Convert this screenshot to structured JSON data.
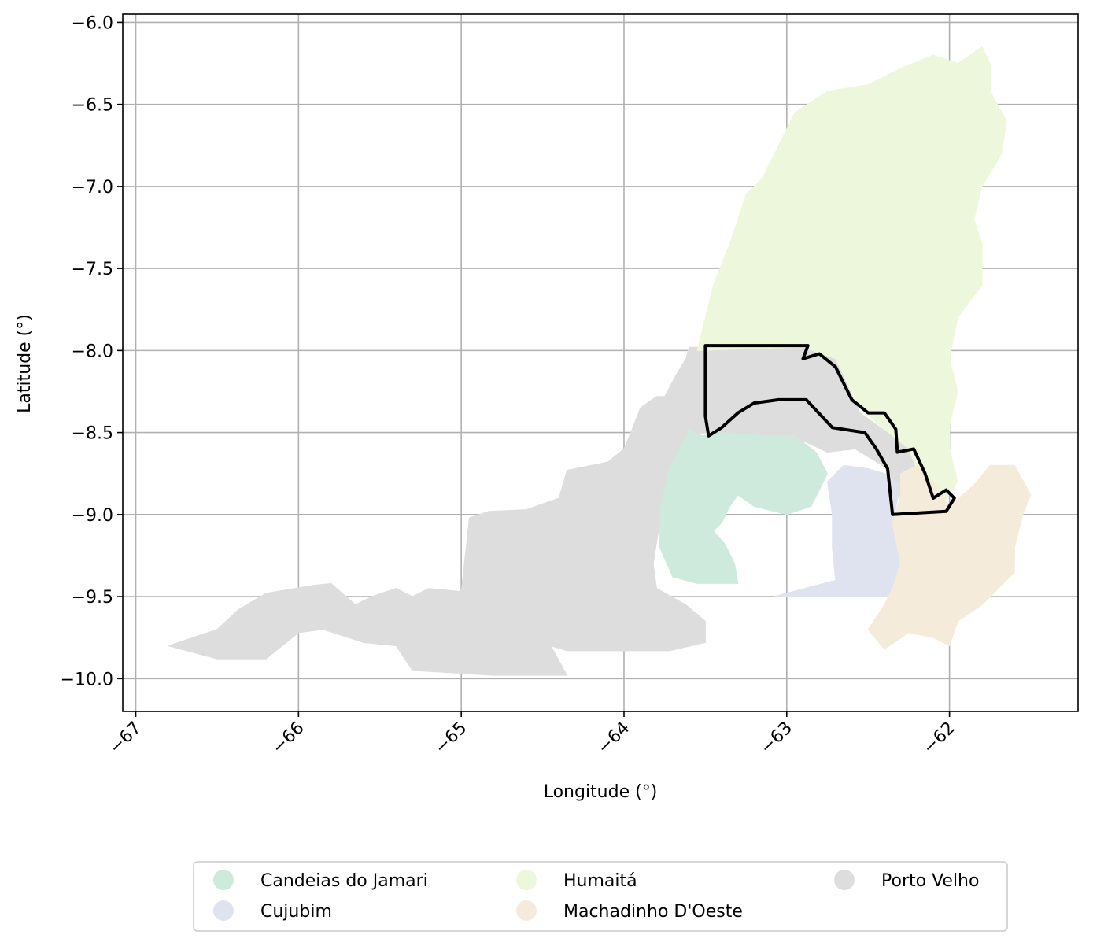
{
  "chart_data": {
    "type": "choropleth-map",
    "xlabel": "Longitude (°)",
    "ylabel": "Latitude (°)",
    "xlim": [
      -67.08,
      -61.21
    ],
    "ylim": [
      -10.2,
      -5.95
    ],
    "xticks": [
      -67,
      -66,
      -65,
      -64,
      -63,
      -62
    ],
    "xtick_labels": [
      "−67",
      "−66",
      "−65",
      "−64",
      "−63",
      "−62"
    ],
    "yticks": [
      -6.0,
      -6.5,
      -7.0,
      -7.5,
      -8.0,
      -8.5,
      -9.0,
      -9.5,
      -10.0
    ],
    "ytick_labels": [
      "−6.0",
      "−6.5",
      "−7.0",
      "−7.5",
      "−8.0",
      "−8.5",
      "−9.0",
      "−9.5",
      "−10.0"
    ],
    "grid": true,
    "legend_position": "bottom-center",
    "regions": [
      {
        "name": "Porto Velho",
        "color": "#dddddd",
        "coords": [
          [
            -66.8,
            -9.8
          ],
          [
            -66.5,
            -9.7
          ],
          [
            -66.37,
            -9.58
          ],
          [
            -66.2,
            -9.48
          ],
          [
            -65.9,
            -9.43
          ],
          [
            -65.8,
            -9.42
          ],
          [
            -65.65,
            -9.55
          ],
          [
            -65.55,
            -9.5
          ],
          [
            -65.4,
            -9.45
          ],
          [
            -65.3,
            -9.5
          ],
          [
            -65.2,
            -9.45
          ],
          [
            -65.0,
            -9.47
          ],
          [
            -64.95,
            -9.02
          ],
          [
            -64.83,
            -8.98
          ],
          [
            -64.6,
            -8.97
          ],
          [
            -64.4,
            -8.9
          ],
          [
            -64.35,
            -8.73
          ],
          [
            -64.2,
            -8.7
          ],
          [
            -64.1,
            -8.68
          ],
          [
            -64.0,
            -8.6
          ],
          [
            -63.95,
            -8.48
          ],
          [
            -63.9,
            -8.35
          ],
          [
            -63.8,
            -8.28
          ],
          [
            -63.75,
            -8.28
          ],
          [
            -63.68,
            -8.15
          ],
          [
            -63.62,
            -8.05
          ],
          [
            -63.6,
            -7.98
          ],
          [
            -63.3,
            -7.98
          ],
          [
            -62.9,
            -7.98
          ],
          [
            -62.7,
            -8.05
          ],
          [
            -62.55,
            -8.38
          ],
          [
            -62.38,
            -8.5
          ],
          [
            -62.25,
            -8.6
          ],
          [
            -62.15,
            -8.82
          ],
          [
            -62.02,
            -8.98
          ],
          [
            -62.2,
            -8.97
          ],
          [
            -62.3,
            -8.9
          ],
          [
            -62.38,
            -8.72
          ],
          [
            -62.58,
            -8.6
          ],
          [
            -62.75,
            -8.62
          ],
          [
            -62.9,
            -8.55
          ],
          [
            -63.1,
            -8.52
          ],
          [
            -63.35,
            -8.5
          ],
          [
            -63.55,
            -8.5
          ],
          [
            -63.7,
            -8.75
          ],
          [
            -63.75,
            -8.85
          ],
          [
            -63.82,
            -9.3
          ],
          [
            -63.8,
            -9.45
          ],
          [
            -63.62,
            -9.55
          ],
          [
            -63.5,
            -9.65
          ],
          [
            -63.5,
            -9.78
          ],
          [
            -63.72,
            -9.83
          ],
          [
            -64.35,
            -9.83
          ],
          [
            -64.45,
            -9.8
          ],
          [
            -64.35,
            -9.98
          ],
          [
            -64.8,
            -9.98
          ],
          [
            -65.3,
            -9.95
          ],
          [
            -65.4,
            -9.8
          ],
          [
            -65.6,
            -9.78
          ],
          [
            -65.85,
            -9.7
          ],
          [
            -66.0,
            -9.72
          ],
          [
            -66.2,
            -9.88
          ],
          [
            -66.5,
            -9.88
          ],
          [
            -66.8,
            -9.8
          ]
        ]
      },
      {
        "name": "Candeias do Jamari",
        "color": "#cdeadd",
        "coords": [
          [
            -63.6,
            -8.48
          ],
          [
            -63.52,
            -8.52
          ],
          [
            -63.38,
            -8.5
          ],
          [
            -63.15,
            -8.52
          ],
          [
            -62.95,
            -8.52
          ],
          [
            -62.82,
            -8.62
          ],
          [
            -62.75,
            -8.75
          ],
          [
            -62.85,
            -8.95
          ],
          [
            -63.0,
            -9.0
          ],
          [
            -63.2,
            -8.95
          ],
          [
            -63.3,
            -8.88
          ],
          [
            -63.35,
            -8.95
          ],
          [
            -63.4,
            -9.05
          ],
          [
            -63.45,
            -9.1
          ],
          [
            -63.38,
            -9.18
          ],
          [
            -63.32,
            -9.3
          ],
          [
            -63.3,
            -9.42
          ],
          [
            -63.55,
            -9.42
          ],
          [
            -63.7,
            -9.38
          ],
          [
            -63.78,
            -9.2
          ],
          [
            -63.78,
            -8.98
          ],
          [
            -63.72,
            -8.72
          ],
          [
            -63.6,
            -8.48
          ]
        ]
      },
      {
        "name": "Cujubim",
        "color": "#dfe3f0",
        "coords": [
          [
            -62.75,
            -8.8
          ],
          [
            -62.65,
            -8.7
          ],
          [
            -62.5,
            -8.72
          ],
          [
            -62.4,
            -8.75
          ],
          [
            -62.3,
            -8.82
          ],
          [
            -62.35,
            -9.05
          ],
          [
            -62.3,
            -9.25
          ],
          [
            -62.3,
            -9.45
          ],
          [
            -62.35,
            -9.5
          ],
          [
            -62.7,
            -9.5
          ],
          [
            -63.08,
            -9.5
          ],
          [
            -62.7,
            -9.4
          ],
          [
            -62.72,
            -9.2
          ],
          [
            -62.72,
            -9.0
          ],
          [
            -62.75,
            -8.8
          ]
        ]
      },
      {
        "name": "Humaitá",
        "color": "#ecf7db",
        "coords": [
          [
            -63.55,
            -8.0
          ],
          [
            -63.5,
            -7.8
          ],
          [
            -63.45,
            -7.6
          ],
          [
            -63.35,
            -7.35
          ],
          [
            -63.25,
            -7.05
          ],
          [
            -63.15,
            -6.95
          ],
          [
            -63.05,
            -6.75
          ],
          [
            -62.95,
            -6.55
          ],
          [
            -62.75,
            -6.42
          ],
          [
            -62.5,
            -6.38
          ],
          [
            -62.3,
            -6.28
          ],
          [
            -62.1,
            -6.2
          ],
          [
            -61.95,
            -6.25
          ],
          [
            -61.8,
            -6.15
          ],
          [
            -61.75,
            -6.25
          ],
          [
            -61.75,
            -6.42
          ],
          [
            -61.65,
            -6.6
          ],
          [
            -61.68,
            -6.8
          ],
          [
            -61.8,
            -7.0
          ],
          [
            -61.85,
            -7.2
          ],
          [
            -61.8,
            -7.35
          ],
          [
            -61.8,
            -7.6
          ],
          [
            -61.95,
            -7.8
          ],
          [
            -62.0,
            -8.05
          ],
          [
            -61.95,
            -8.25
          ],
          [
            -62.0,
            -8.45
          ],
          [
            -62.0,
            -8.6
          ],
          [
            -61.95,
            -8.8
          ],
          [
            -62.05,
            -8.95
          ],
          [
            -62.15,
            -8.85
          ],
          [
            -62.25,
            -8.6
          ],
          [
            -62.4,
            -8.48
          ],
          [
            -62.55,
            -8.35
          ],
          [
            -62.7,
            -8.05
          ],
          [
            -62.9,
            -7.98
          ],
          [
            -63.55,
            -8.0
          ]
        ]
      },
      {
        "name": "Machadinho D'Oeste",
        "color": "#f4ebdb",
        "coords": [
          [
            -62.3,
            -8.75
          ],
          [
            -62.2,
            -8.7
          ],
          [
            -62.1,
            -8.8
          ],
          [
            -62.0,
            -8.95
          ],
          [
            -61.85,
            -8.82
          ],
          [
            -61.75,
            -8.7
          ],
          [
            -61.6,
            -8.7
          ],
          [
            -61.5,
            -8.88
          ],
          [
            -61.55,
            -9.0
          ],
          [
            -61.6,
            -9.2
          ],
          [
            -61.6,
            -9.35
          ],
          [
            -61.7,
            -9.45
          ],
          [
            -61.8,
            -9.55
          ],
          [
            -61.95,
            -9.65
          ],
          [
            -62.0,
            -9.8
          ],
          [
            -62.1,
            -9.75
          ],
          [
            -62.25,
            -9.72
          ],
          [
            -62.4,
            -9.82
          ],
          [
            -62.5,
            -9.7
          ],
          [
            -62.4,
            -9.55
          ],
          [
            -62.35,
            -9.45
          ],
          [
            -62.3,
            -9.3
          ],
          [
            -62.35,
            -9.05
          ],
          [
            -62.3,
            -8.88
          ],
          [
            -62.3,
            -8.75
          ]
        ]
      }
    ],
    "highlight_outline": {
      "color": "#000000",
      "coords": [
        [
          -63.5,
          -7.97
        ],
        [
          -62.87,
          -7.97
        ],
        [
          -62.9,
          -8.05
        ],
        [
          -62.8,
          -8.02
        ],
        [
          -62.7,
          -8.1
        ],
        [
          -62.65,
          -8.2
        ],
        [
          -62.6,
          -8.3
        ],
        [
          -62.5,
          -8.38
        ],
        [
          -62.4,
          -8.38
        ],
        [
          -62.33,
          -8.48
        ],
        [
          -62.32,
          -8.62
        ],
        [
          -62.22,
          -8.6
        ],
        [
          -62.15,
          -8.75
        ],
        [
          -62.1,
          -8.9
        ],
        [
          -62.02,
          -8.85
        ],
        [
          -61.97,
          -8.9
        ],
        [
          -62.02,
          -8.98
        ],
        [
          -62.35,
          -9.0
        ],
        [
          -62.38,
          -8.72
        ],
        [
          -62.45,
          -8.6
        ],
        [
          -62.52,
          -8.5
        ],
        [
          -62.72,
          -8.47
        ],
        [
          -62.88,
          -8.3
        ],
        [
          -63.05,
          -8.3
        ],
        [
          -63.2,
          -8.32
        ],
        [
          -63.3,
          -8.38
        ],
        [
          -63.4,
          -8.47
        ],
        [
          -63.48,
          -8.52
        ],
        [
          -63.5,
          -8.4
        ],
        [
          -63.5,
          -7.97
        ]
      ]
    },
    "legend": {
      "columns": [
        [
          {
            "label": "Candeias do Jamari",
            "color": "#cdeadd"
          },
          {
            "label": "Cujubim",
            "color": "#dfe3f0"
          }
        ],
        [
          {
            "label": "Humaitá",
            "color": "#ecf7db"
          },
          {
            "label": "Machadinho D'Oeste",
            "color": "#f4ebdb"
          }
        ],
        [
          {
            "label": "Porto Velho",
            "color": "#dddddd"
          }
        ]
      ]
    }
  }
}
